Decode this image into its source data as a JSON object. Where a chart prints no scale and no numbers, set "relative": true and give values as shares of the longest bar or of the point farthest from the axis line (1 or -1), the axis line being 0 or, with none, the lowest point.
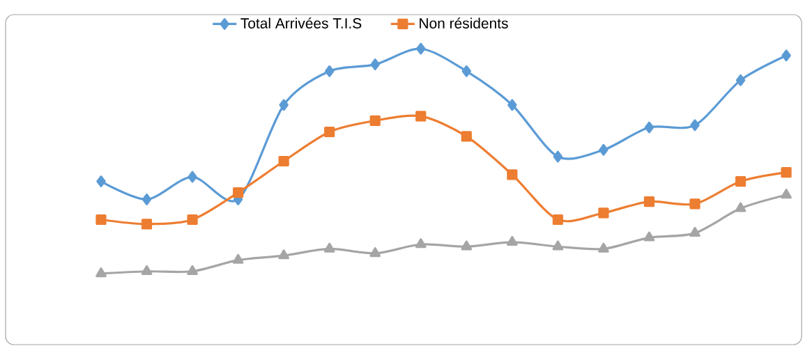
{
  "chart_data": {
    "type": "line",
    "relative": true,
    "legend": "top",
    "line_style": "solid",
    "categories": [
      null,
      null,
      null,
      null,
      null,
      null,
      null,
      null,
      null,
      null,
      null,
      null,
      null,
      null,
      null,
      null
    ],
    "series": [
      {
        "name": "Total Arrivées T.I.S",
        "color": "#5b9bd5",
        "marker": "diamond",
        "values": [
          0.41,
          0.33,
          0.43,
          0.33,
          0.75,
          0.9,
          0.93,
          1,
          0.9,
          0.75,
          0.52,
          0.55,
          0.65,
          0.66,
          0.86,
          0.97
        ]
      },
      {
        "name": "Non résidents",
        "color": "#ed7d31",
        "marker": "square",
        "values": [
          0.24,
          0.22,
          0.24,
          0.36,
          0.5,
          0.63,
          0.68,
          0.7,
          0.61,
          0.44,
          0.24,
          0.27,
          0.32,
          0.31,
          0.41,
          0.45
        ]
      },
      {
        "color": "#a5a5a5",
        "marker": "triangle",
        "values": [
          0,
          0.01,
          0.01,
          0.06,
          0.08,
          0.11,
          0.09,
          0.13,
          0.12,
          0.14,
          0.12,
          0.11,
          0.16,
          0.18,
          0.29,
          0.35
        ]
      }
    ]
  }
}
